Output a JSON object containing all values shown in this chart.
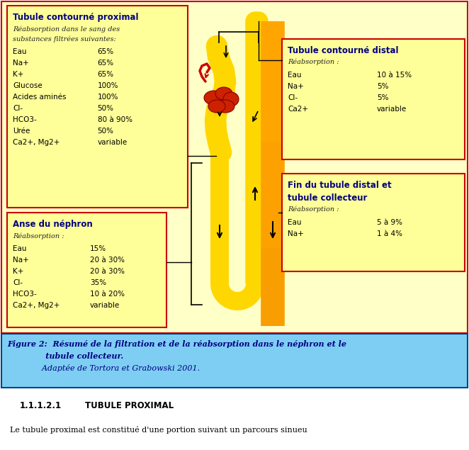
{
  "bg_color": "#ffffc8",
  "white_bg": "#ffffff",
  "main_border_color": "#cc0000",
  "caption_bg": "#7ecef4",
  "box_fill": "#ffff99",
  "box_border": "#cc0000",
  "title_color": "#000080",
  "figure_bg": "#ffffff",
  "box_proximal": {
    "title": "Tubule contourné proximal",
    "subtitle1": "Réabsorption dans le sang des",
    "subtitle2": "substances filtrées suivantes:",
    "rows": [
      [
        "Eau",
        "65%"
      ],
      [
        "Na+",
        "65%"
      ],
      [
        "K+",
        "65%"
      ],
      [
        "Glucose",
        "100%"
      ],
      [
        "Acides aminés",
        "100%"
      ],
      [
        "Cl-",
        "50%"
      ],
      [
        "HCO3-",
        "80 à 90%"
      ],
      [
        "Urée",
        "50%"
      ],
      [
        "Ca2+, Mg2+",
        "variable"
      ]
    ]
  },
  "box_nephron": {
    "title": "Anse du néphron",
    "subtitle1": "Réabsorption :",
    "rows": [
      [
        "Eau",
        "15%"
      ],
      [
        "Na+",
        "20 à 30%"
      ],
      [
        "K+",
        "20 à 30%"
      ],
      [
        "Cl-",
        "35%"
      ],
      [
        "HCO3-",
        "10 à 20%"
      ],
      [
        "Ca2+, Mg2+",
        "variable"
      ]
    ]
  },
  "box_distal": {
    "title": "Tubule contourné distal",
    "subtitle1": "Réabsorption :",
    "rows": [
      [
        "Eau",
        "10 à 15%"
      ],
      [
        "Na+",
        "5%"
      ],
      [
        "Cl-",
        "5%"
      ],
      [
        "Ca2+",
        "variable"
      ]
    ]
  },
  "box_collector": {
    "title": "Fin du tubule distal et",
    "title2": "tubule collecteur",
    "subtitle1": "Réabsorption :",
    "rows": [
      [
        "Eau",
        "5 à 9%"
      ],
      [
        "Na+",
        "1 à 4%"
      ]
    ]
  },
  "caption_line1": "Figure 2:  Résumé de la filtration et de la réabsorption dans le néphron et le",
  "caption_line2": "              tubule collecteur.",
  "caption_line3": "              Adaptée de Tortora et Grabowski 2001.",
  "bottom_title_num": "1.1.1.2.1",
  "bottom_title_text": "TUBULE PROXIMAL",
  "bottom_body": "Le tubule proximal est constitué d'une portion suivant un parcours sinueu"
}
